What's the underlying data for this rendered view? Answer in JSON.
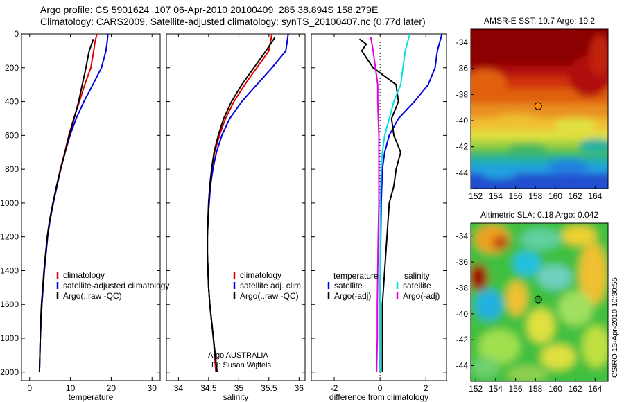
{
  "header": {
    "line1": "Argo profile: CS 5901624_107 06-Apr-2010 20100409_285 38.894S 158.279E",
    "line2": "Climatology: CARS2009. Satellite-adjusted climatology: synTS_20100407.nc (0.77d later)"
  },
  "credit": "CSIRO 13-Apr-2010 10:30:55",
  "colors": {
    "climatology": "#e00000",
    "satellite": "#0000e0",
    "argo": "#000000",
    "salinity_diff": "#00e0e0",
    "argo_salinity_diff": "#e000e0"
  },
  "chart_data": [
    {
      "type": "line",
      "panel": "temperature",
      "xlabel": "temperature",
      "ylabel": "",
      "xlim": [
        -2,
        32
      ],
      "ylim": [
        2050,
        0
      ],
      "xticks": [
        0,
        10,
        20,
        30
      ],
      "yticks": [
        0,
        200,
        400,
        600,
        800,
        1000,
        1200,
        1400,
        1600,
        1800,
        2000
      ],
      "legend": [
        "climatology",
        "satellite-adjusted climatology",
        "Argo(..raw -QC)"
      ],
      "series": [
        {
          "name": "climatology",
          "color": "#e00000",
          "points": [
            [
              16.5,
              0
            ],
            [
              16,
              50
            ],
            [
              15.7,
              100
            ],
            [
              15,
              200
            ],
            [
              13.5,
              300
            ],
            [
              12.2,
              400
            ],
            [
              10.8,
              500
            ],
            [
              9.6,
              600
            ],
            [
              8.6,
              700
            ],
            [
              7.5,
              800
            ],
            [
              6.6,
              900
            ],
            [
              5.8,
              1000
            ],
            [
              5.0,
              1100
            ],
            [
              4.4,
              1200
            ],
            [
              4.0,
              1300
            ],
            [
              3.6,
              1400
            ],
            [
              3.3,
              1500
            ],
            [
              3.0,
              1600
            ],
            [
              2.8,
              1700
            ],
            [
              2.6,
              1800
            ],
            [
              2.5,
              1900
            ],
            [
              2.4,
              2000
            ]
          ]
        },
        {
          "name": "satellite-adjusted climatology",
          "color": "#0000e0",
          "points": [
            [
              19.2,
              0
            ],
            [
              19,
              50
            ],
            [
              18.7,
              100
            ],
            [
              17.6,
              200
            ],
            [
              15.5,
              300
            ],
            [
              13.3,
              400
            ],
            [
              11.4,
              500
            ],
            [
              9.9,
              600
            ],
            [
              8.7,
              700
            ],
            [
              7.6,
              800
            ],
            [
              6.7,
              900
            ],
            [
              5.8,
              1000
            ],
            [
              5.0,
              1100
            ],
            [
              4.4,
              1200
            ],
            [
              4.0,
              1300
            ],
            [
              3.6,
              1400
            ],
            [
              3.3,
              1500
            ],
            [
              3.0,
              1600
            ],
            [
              2.8,
              1700
            ],
            [
              2.6,
              1800
            ],
            [
              2.5,
              1900
            ],
            [
              2.4,
              2000
            ]
          ]
        },
        {
          "name": "Argo(..raw -QC)",
          "color": "#000000",
          "points": [
            [
              15.6,
              30
            ],
            [
              15.2,
              60
            ],
            [
              14.6,
              100
            ],
            [
              13.8,
              200
            ],
            [
              12.9,
              300
            ],
            [
              12.0,
              400
            ],
            [
              10.9,
              500
            ],
            [
              9.7,
              600
            ],
            [
              8.7,
              700
            ],
            [
              7.6,
              800
            ],
            [
              6.6,
              900
            ],
            [
              5.7,
              1000
            ],
            [
              4.9,
              1100
            ],
            [
              4.3,
              1200
            ],
            [
              3.9,
              1300
            ],
            [
              3.5,
              1400
            ],
            [
              3.2,
              1500
            ],
            [
              2.9,
              1600
            ],
            [
              2.7,
              1700
            ],
            [
              2.6,
              1800
            ],
            [
              2.5,
              1900
            ],
            [
              2.4,
              2000
            ]
          ]
        }
      ]
    },
    {
      "type": "line",
      "panel": "salinity",
      "xlabel": "salinity",
      "ylabel": "",
      "xlim": [
        33.8,
        36.1
      ],
      "ylim": [
        2050,
        0
      ],
      "xticks": [
        34,
        34.5,
        35,
        35.5,
        36
      ],
      "legend": [
        "climatology",
        "satellite adj. clim.",
        "Argo(..raw -QC)"
      ],
      "annotation": [
        "Argo AUSTRALIA",
        "PI: Susan Wijffels"
      ],
      "series": [
        {
          "name": "climatology",
          "color": "#e00000",
          "points": [
            [
              35.55,
              0
            ],
            [
              35.5,
              100
            ],
            [
              35.3,
              200
            ],
            [
              35.1,
              300
            ],
            [
              34.92,
              400
            ],
            [
              34.78,
              500
            ],
            [
              34.68,
              600
            ],
            [
              34.6,
              700
            ],
            [
              34.55,
              800
            ],
            [
              34.52,
              900
            ],
            [
              34.5,
              1000
            ],
            [
              34.49,
              1100
            ],
            [
              34.48,
              1200
            ],
            [
              34.48,
              1300
            ],
            [
              34.49,
              1400
            ],
            [
              34.5,
              1500
            ],
            [
              34.52,
              1600
            ],
            [
              34.55,
              1700
            ],
            [
              34.58,
              1800
            ],
            [
              34.6,
              1900
            ],
            [
              34.62,
              2000
            ]
          ]
        },
        {
          "name": "satellite adj. clim.",
          "color": "#0000e0",
          "points": [
            [
              35.82,
              0
            ],
            [
              35.78,
              100
            ],
            [
              35.55,
              200
            ],
            [
              35.3,
              300
            ],
            [
              35.05,
              400
            ],
            [
              34.85,
              500
            ],
            [
              34.72,
              600
            ],
            [
              34.63,
              700
            ],
            [
              34.57,
              800
            ],
            [
              34.53,
              900
            ],
            [
              34.51,
              1000
            ],
            [
              34.49,
              1100
            ],
            [
              34.48,
              1200
            ],
            [
              34.48,
              1300
            ],
            [
              34.49,
              1400
            ],
            [
              34.5,
              1500
            ],
            [
              34.52,
              1600
            ],
            [
              34.55,
              1700
            ],
            [
              34.58,
              1800
            ],
            [
              34.61,
              1900
            ],
            [
              34.64,
              2000
            ]
          ]
        },
        {
          "name": "Argo(..raw -QC)",
          "color": "#000000",
          "points": [
            [
              35.6,
              20
            ],
            [
              35.45,
              100
            ],
            [
              35.25,
              200
            ],
            [
              35.05,
              300
            ],
            [
              34.88,
              400
            ],
            [
              34.75,
              500
            ],
            [
              34.66,
              600
            ],
            [
              34.59,
              700
            ],
            [
              34.55,
              800
            ],
            [
              34.52,
              900
            ],
            [
              34.5,
              1000
            ],
            [
              34.49,
              1100
            ],
            [
              34.48,
              1200
            ],
            [
              34.48,
              1300
            ],
            [
              34.49,
              1400
            ],
            [
              34.5,
              1500
            ],
            [
              34.52,
              1600
            ],
            [
              34.55,
              1700
            ],
            [
              34.58,
              1800
            ],
            [
              34.61,
              1900
            ],
            [
              34.64,
              2000
            ]
          ]
        }
      ]
    },
    {
      "type": "line",
      "panel": "difference",
      "xlabel": "difference from climatology",
      "ylabel": "",
      "xlim": [
        -3,
        2.9
      ],
      "ylim": [
        2050,
        0
      ],
      "xticks": [
        -2,
        0,
        2
      ],
      "legend_left": {
        "header": "temperature",
        "items": [
          "satellite",
          "Argo(-adj)"
        ]
      },
      "legend_right": {
        "header": "salinity",
        "items": [
          "satellite",
          "Argo(-adj)"
        ]
      },
      "series": [
        {
          "name": "satellite",
          "group": "temperature",
          "color": "#0000e0",
          "points": [
            [
              2.7,
              0
            ],
            [
              2.5,
              100
            ],
            [
              2.4,
              200
            ],
            [
              2.1,
              300
            ],
            [
              1.5,
              400
            ],
            [
              0.8,
              500
            ],
            [
              0.4,
              600
            ],
            [
              0.2,
              700
            ],
            [
              0.1,
              800
            ],
            [
              0.05,
              1000
            ],
            [
              0.0,
              1500
            ],
            [
              0.0,
              2000
            ]
          ]
        },
        {
          "name": "Argo(-adj)",
          "group": "temperature",
          "color": "#000000",
          "points": [
            [
              -0.9,
              30
            ],
            [
              -0.6,
              60
            ],
            [
              -0.8,
              100
            ],
            [
              -0.3,
              200
            ],
            [
              0.7,
              300
            ],
            [
              0.8,
              400
            ],
            [
              0.5,
              500
            ],
            [
              0.6,
              600
            ],
            [
              0.9,
              700
            ],
            [
              0.7,
              800
            ],
            [
              0.6,
              900
            ],
            [
              0.4,
              1000
            ],
            [
              0.3,
              1200
            ],
            [
              0.2,
              1400
            ],
            [
              0.1,
              1600
            ],
            [
              0.1,
              1800
            ],
            [
              0.1,
              2000
            ]
          ]
        },
        {
          "name": "satellite",
          "group": "salinity",
          "color": "#00e0e0",
          "points": [
            [
              1.3,
              0
            ],
            [
              1.1,
              100
            ],
            [
              1.0,
              200
            ],
            [
              0.9,
              300
            ],
            [
              0.6,
              400
            ],
            [
              0.4,
              500
            ],
            [
              0.2,
              600
            ],
            [
              0.1,
              700
            ],
            [
              0.05,
              800
            ],
            [
              0.02,
              1000
            ],
            [
              0.0,
              1500
            ],
            [
              0.0,
              2000
            ]
          ]
        },
        {
          "name": "Argo(-adj)",
          "group": "salinity",
          "color": "#e000e0",
          "points": [
            [
              -0.4,
              20
            ],
            [
              -0.3,
              100
            ],
            [
              -0.2,
              200
            ],
            [
              -0.1,
              300
            ],
            [
              -0.1,
              400
            ],
            [
              -0.05,
              600
            ],
            [
              -0.05,
              800
            ],
            [
              -0.05,
              1000
            ],
            [
              -0.08,
              1200
            ],
            [
              -0.1,
              1400
            ],
            [
              -0.12,
              1600
            ],
            [
              -0.12,
              1800
            ],
            [
              -0.15,
              2000
            ]
          ]
        }
      ]
    },
    {
      "type": "heatmap",
      "panel": "sst_map",
      "title": "AMSR-E SST: 19.7 Argo: 19.2",
      "xlim": [
        151.5,
        165.3
      ],
      "ylim": [
        -45.2,
        -33
      ],
      "xticks": [
        152,
        154,
        156,
        158,
        160,
        162,
        164
      ],
      "yticks": [
        -34,
        -36,
        -38,
        -40,
        -42,
        -44
      ],
      "marker": {
        "lon": 158.279,
        "lat": -38.894,
        "color": "#ff8c00"
      }
    },
    {
      "type": "heatmap",
      "panel": "sla_map",
      "title": "Altimetric SLA: 0.18 Argo: 0.042",
      "xlim": [
        151.5,
        165.3
      ],
      "ylim": [
        -45.2,
        -33
      ],
      "xticks": [
        152,
        154,
        156,
        158,
        160,
        162,
        164
      ],
      "yticks": [
        -34,
        -36,
        -38,
        -40,
        -42,
        -44
      ],
      "marker": {
        "lon": 158.279,
        "lat": -38.894,
        "color": "#2ca02c"
      }
    }
  ]
}
